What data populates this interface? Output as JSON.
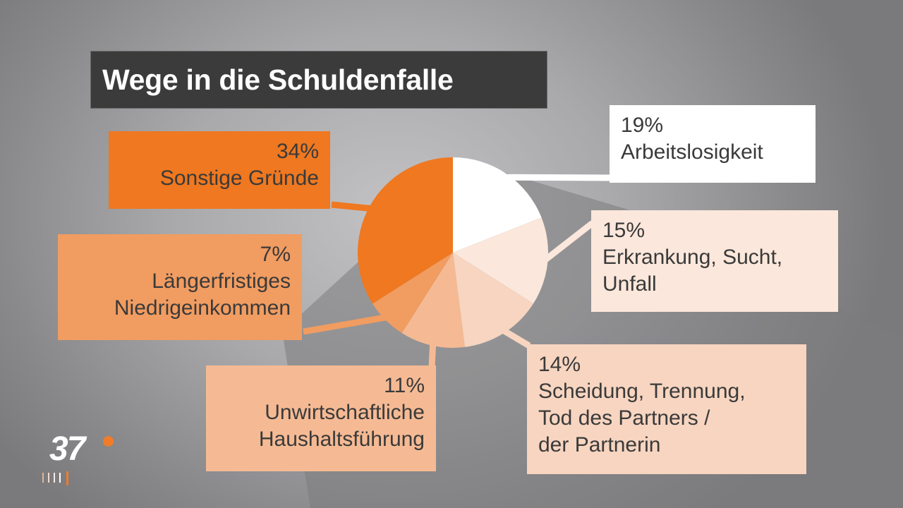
{
  "title": "Wege in die Schuldenfalle",
  "logo": {
    "text": "37",
    "accent_color": "#f07c2a"
  },
  "colors": {
    "slice_white": "#ffffff",
    "slice_very_light": "#fbe7db",
    "slice_light": "#f7d5c0",
    "slice_mid": "#f5ba94",
    "slice_medium": "#f19c61",
    "slice_dark": "#ef7820"
  },
  "labels": [
    {
      "pct": "19%",
      "text": "Arbeitslosigkeit"
    },
    {
      "pct": "15%",
      "text": "Erkrankung, Sucht,\nUnfall"
    },
    {
      "pct": "14%",
      "text": "Scheidung, Trennung,\nTod des Partners /\nder Partnerin"
    },
    {
      "pct": "11%",
      "text": "Unwirtschaftliche\nHaushaltsführung"
    },
    {
      "pct": "7%",
      "text": "Längerfristiges\nNiedrigeinkommen"
    },
    {
      "pct": "34%",
      "text": "Sonstige Gründe"
    }
  ],
  "chart_data": {
    "type": "pie",
    "title": "Wege in die Schuldenfalle",
    "categories": [
      "Arbeitslosigkeit",
      "Erkrankung, Sucht, Unfall",
      "Scheidung, Trennung, Tod des Partners / der Partnerin",
      "Unwirtschaftliche Haushaltsführung",
      "Längerfristiges Niedrigeinkommen",
      "Sonstige Gründe"
    ],
    "values": [
      19,
      15,
      14,
      11,
      7,
      34
    ],
    "unit": "%",
    "start_angle": "12 o'clock, clockwise",
    "colors": [
      "#ffffff",
      "#fbe7db",
      "#f7d5c0",
      "#f5ba94",
      "#f19c61",
      "#ef7820"
    ],
    "legend": "callout labels"
  }
}
